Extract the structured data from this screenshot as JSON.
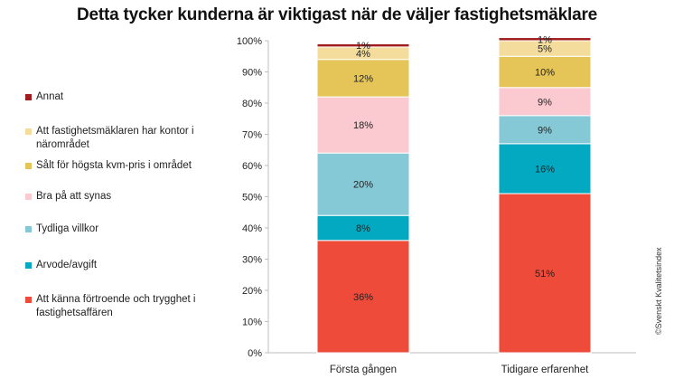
{
  "chart_data": {
    "type": "bar",
    "stacked": true,
    "percent": true,
    "title": "Detta tycker kunderna är viktigast när de väljer fastighetsmäklare",
    "categories": [
      "Första gången",
      "Tidigare erfarenhet"
    ],
    "ylim": [
      0,
      100
    ],
    "yticks": [
      "0%",
      "10%",
      "20%",
      "30%",
      "40%",
      "50%",
      "60%",
      "70%",
      "80%",
      "90%",
      "100%"
    ],
    "series": [
      {
        "name": "Att känna förtroende och trygghet i fastighetsaffären",
        "color": "#ee4b3a",
        "values": [
          36,
          51
        ],
        "labels": [
          "36%",
          "51%"
        ]
      },
      {
        "name": "Arvode/avgift",
        "color": "#03a9c1",
        "values": [
          8,
          16
        ],
        "labels": [
          "8%",
          "16%"
        ]
      },
      {
        "name": "Tydliga villkor",
        "color": "#86c9d6",
        "values": [
          20,
          9
        ],
        "labels": [
          "20%",
          "9%"
        ]
      },
      {
        "name": "Bra på att synas",
        "color": "#fbcad0",
        "values": [
          18,
          9
        ],
        "labels": [
          "18%",
          "9%"
        ]
      },
      {
        "name": "Sålt för högsta kvm-pris i området",
        "color": "#e5c558",
        "values": [
          12,
          10
        ],
        "labels": [
          "12%",
          "10%"
        ]
      },
      {
        "name": "Att fastighetsmäklaren har kontor i närområdet",
        "color": "#f4dd9c",
        "values": [
          4,
          5
        ],
        "labels": [
          "4%",
          "5%"
        ]
      },
      {
        "name": "Annat",
        "color": "#a11d1d",
        "values": [
          1,
          1
        ],
        "labels": [
          "1%",
          "1%"
        ]
      }
    ],
    "legend_position": "left",
    "grid": false
  },
  "watermark": "©Svenskt Kvalitetsindex"
}
